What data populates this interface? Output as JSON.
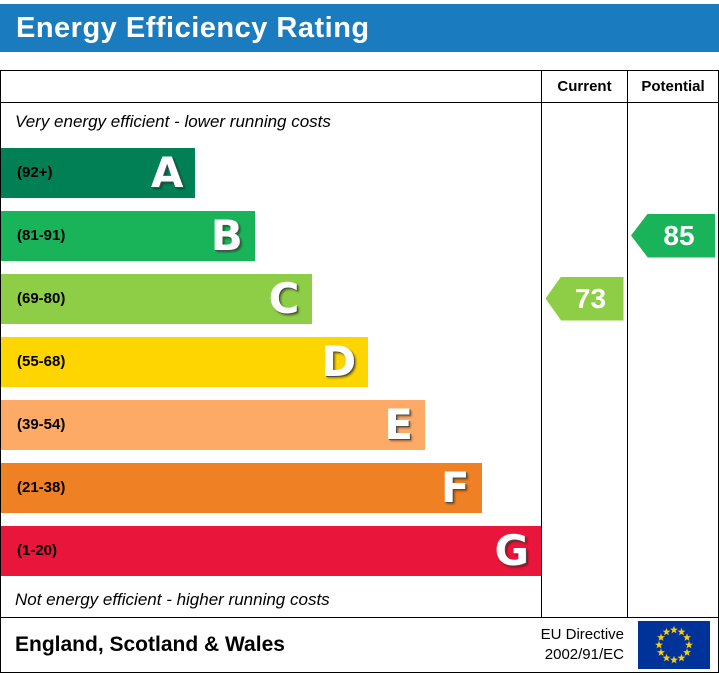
{
  "title": "Energy Efficiency Rating",
  "columns": {
    "current": "Current",
    "potential": "Potential"
  },
  "notes": {
    "top": "Very energy efficient - lower running costs",
    "bottom": "Not energy efficient - higher running costs"
  },
  "chart_data": {
    "type": "bar",
    "subtype": "energy-efficiency-rating",
    "bands": [
      {
        "letter": "A",
        "range": "(92+)",
        "color": "#008054",
        "width_pct": 36
      },
      {
        "letter": "B",
        "range": "(81-91)",
        "color": "#19b459",
        "width_pct": 47
      },
      {
        "letter": "C",
        "range": "(69-80)",
        "color": "#8dce46",
        "width_pct": 57.5
      },
      {
        "letter": "D",
        "range": "(55-68)",
        "color": "#ffd500",
        "width_pct": 68
      },
      {
        "letter": "E",
        "range": "(39-54)",
        "color": "#fcaa65",
        "width_pct": 78.5
      },
      {
        "letter": "F",
        "range": "(21-38)",
        "color": "#ef8023",
        "width_pct": 89
      },
      {
        "letter": "G",
        "range": "(1-20)",
        "color": "#e9153b",
        "width_pct": 100
      }
    ],
    "current": {
      "value": 73,
      "band": "C",
      "color": "#8dce46"
    },
    "potential": {
      "value": 85,
      "band": "B",
      "color": "#19b459"
    }
  },
  "footer": {
    "region": "England, Scotland & Wales",
    "directive": [
      "EU Directive",
      "2002/91/EC"
    ]
  },
  "colors": {
    "header_bg": "#1a7cbe",
    "header_text": "#ffffff",
    "border": "#000000",
    "eu_flag_bg": "#003399",
    "eu_star": "#ffcc00"
  }
}
